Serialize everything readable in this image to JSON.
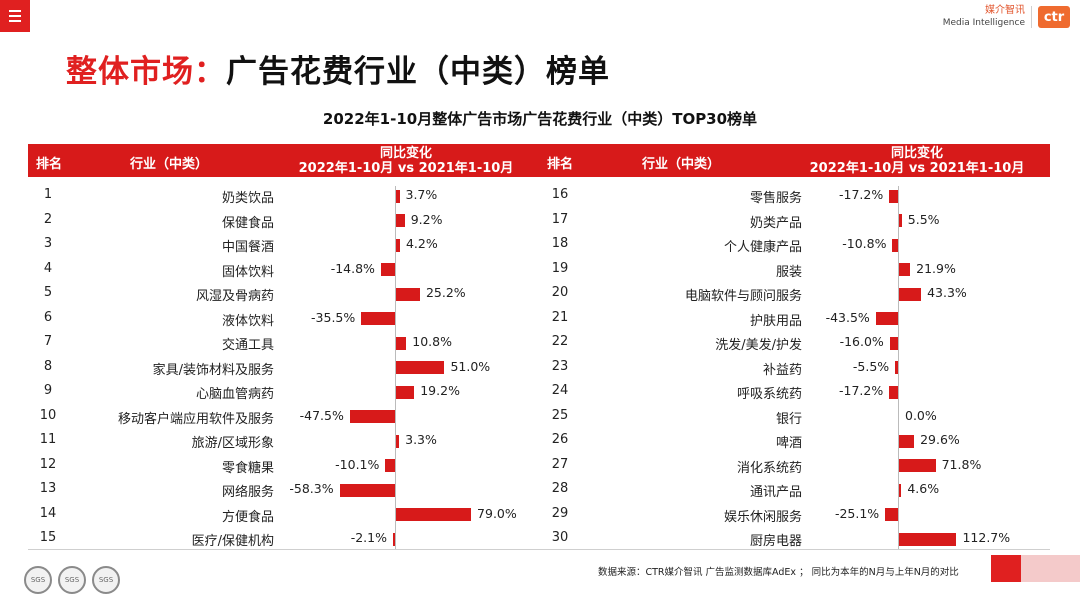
{
  "header": {
    "menu_icon": "hamburger-menu-icon",
    "brand_cn": "媒介智讯",
    "brand_en": "Media Intelligence",
    "brand_logo": "ctr"
  },
  "slide": {
    "title_red": "整体市场：",
    "title_black": "广告花费行业（中类）榜单",
    "footnote": "数据来源：CTR媒介智讯 广告监测数据库AdEx ； 同比为本年的N月与上年N月的对比"
  },
  "colors": {
    "accent": "#d71a1a",
    "pink": "#f4caca"
  },
  "table": {
    "col_rank": "排名",
    "col_industry": "行业（中类）",
    "col_change_line1": "同比变化",
    "col_change_line2": "2022年1-10月 vs 2021年1-10月"
  },
  "chart_data": {
    "type": "bar",
    "orientation": "horizontal",
    "title": "2022年1-10月整体广告市场广告花费行业（中类）TOP30榜单",
    "unit": "%",
    "left": [
      {
        "rank": 1,
        "industry": "奶类饮品",
        "value": 3.7,
        "label": "3.7%"
      },
      {
        "rank": 2,
        "industry": "保健食品",
        "value": 9.2,
        "label": "9.2%"
      },
      {
        "rank": 3,
        "industry": "中国餐酒",
        "value": 4.2,
        "label": "4.2%"
      },
      {
        "rank": 4,
        "industry": "固体饮料",
        "value": -14.8,
        "label": "-14.8%"
      },
      {
        "rank": 5,
        "industry": "风湿及骨病药",
        "value": 25.2,
        "label": "25.2%"
      },
      {
        "rank": 6,
        "industry": "液体饮料",
        "value": -35.5,
        "label": "-35.5%"
      },
      {
        "rank": 7,
        "industry": "交通工具",
        "value": 10.8,
        "label": "10.8%"
      },
      {
        "rank": 8,
        "industry": "家具/装饰材料及服务",
        "value": 51.0,
        "label": "51.0%"
      },
      {
        "rank": 9,
        "industry": "心脑血管病药",
        "value": 19.2,
        "label": "19.2%"
      },
      {
        "rank": 10,
        "industry": "移动客户端应用软件及服务",
        "value": -47.5,
        "label": "-47.5%"
      },
      {
        "rank": 11,
        "industry": "旅游/区域形象",
        "value": 3.3,
        "label": "3.3%"
      },
      {
        "rank": 12,
        "industry": "零食糖果",
        "value": -10.1,
        "label": "-10.1%"
      },
      {
        "rank": 13,
        "industry": "网络服务",
        "value": -58.3,
        "label": "-58.3%"
      },
      {
        "rank": 14,
        "industry": "方便食品",
        "value": 79.0,
        "label": "79.0%"
      },
      {
        "rank": 15,
        "industry": "医疗/保健机构",
        "value": -2.1,
        "label": "-2.1%"
      }
    ],
    "right": [
      {
        "rank": 16,
        "industry": "零售服务",
        "value": -17.2,
        "label": "-17.2%"
      },
      {
        "rank": 17,
        "industry": "奶类产品",
        "value": 5.5,
        "label": "5.5%"
      },
      {
        "rank": 18,
        "industry": "个人健康产品",
        "value": -10.8,
        "label": "-10.8%"
      },
      {
        "rank": 19,
        "industry": "服装",
        "value": 21.9,
        "label": "21.9%"
      },
      {
        "rank": 20,
        "industry": "电脑软件与顾问服务",
        "value": 43.3,
        "label": "43.3%"
      },
      {
        "rank": 21,
        "industry": "护肤用品",
        "value": -43.5,
        "label": "-43.5%"
      },
      {
        "rank": 22,
        "industry": "洗发/美发/护发",
        "value": -16.0,
        "label": "-16.0%"
      },
      {
        "rank": 23,
        "industry": "补益药",
        "value": -5.5,
        "label": "-5.5%"
      },
      {
        "rank": 24,
        "industry": "呼吸系统药",
        "value": -17.2,
        "label": "-17.2%"
      },
      {
        "rank": 25,
        "industry": "银行",
        "value": 0.0,
        "label": "0.0%"
      },
      {
        "rank": 26,
        "industry": "啤酒",
        "value": 29.6,
        "label": "29.6%"
      },
      {
        "rank": 27,
        "industry": "消化系统药",
        "value": 71.8,
        "label": "71.8%"
      },
      {
        "rank": 28,
        "industry": "通讯产品",
        "value": 4.6,
        "label": "4.6%"
      },
      {
        "rank": 29,
        "industry": "娱乐休闲服务",
        "value": -25.1,
        "label": "-25.1%"
      },
      {
        "rank": 30,
        "industry": "厨房电器",
        "value": 112.7,
        "label": "112.7%"
      }
    ]
  },
  "certifications": [
    "SGS",
    "SGS",
    "SGS"
  ]
}
